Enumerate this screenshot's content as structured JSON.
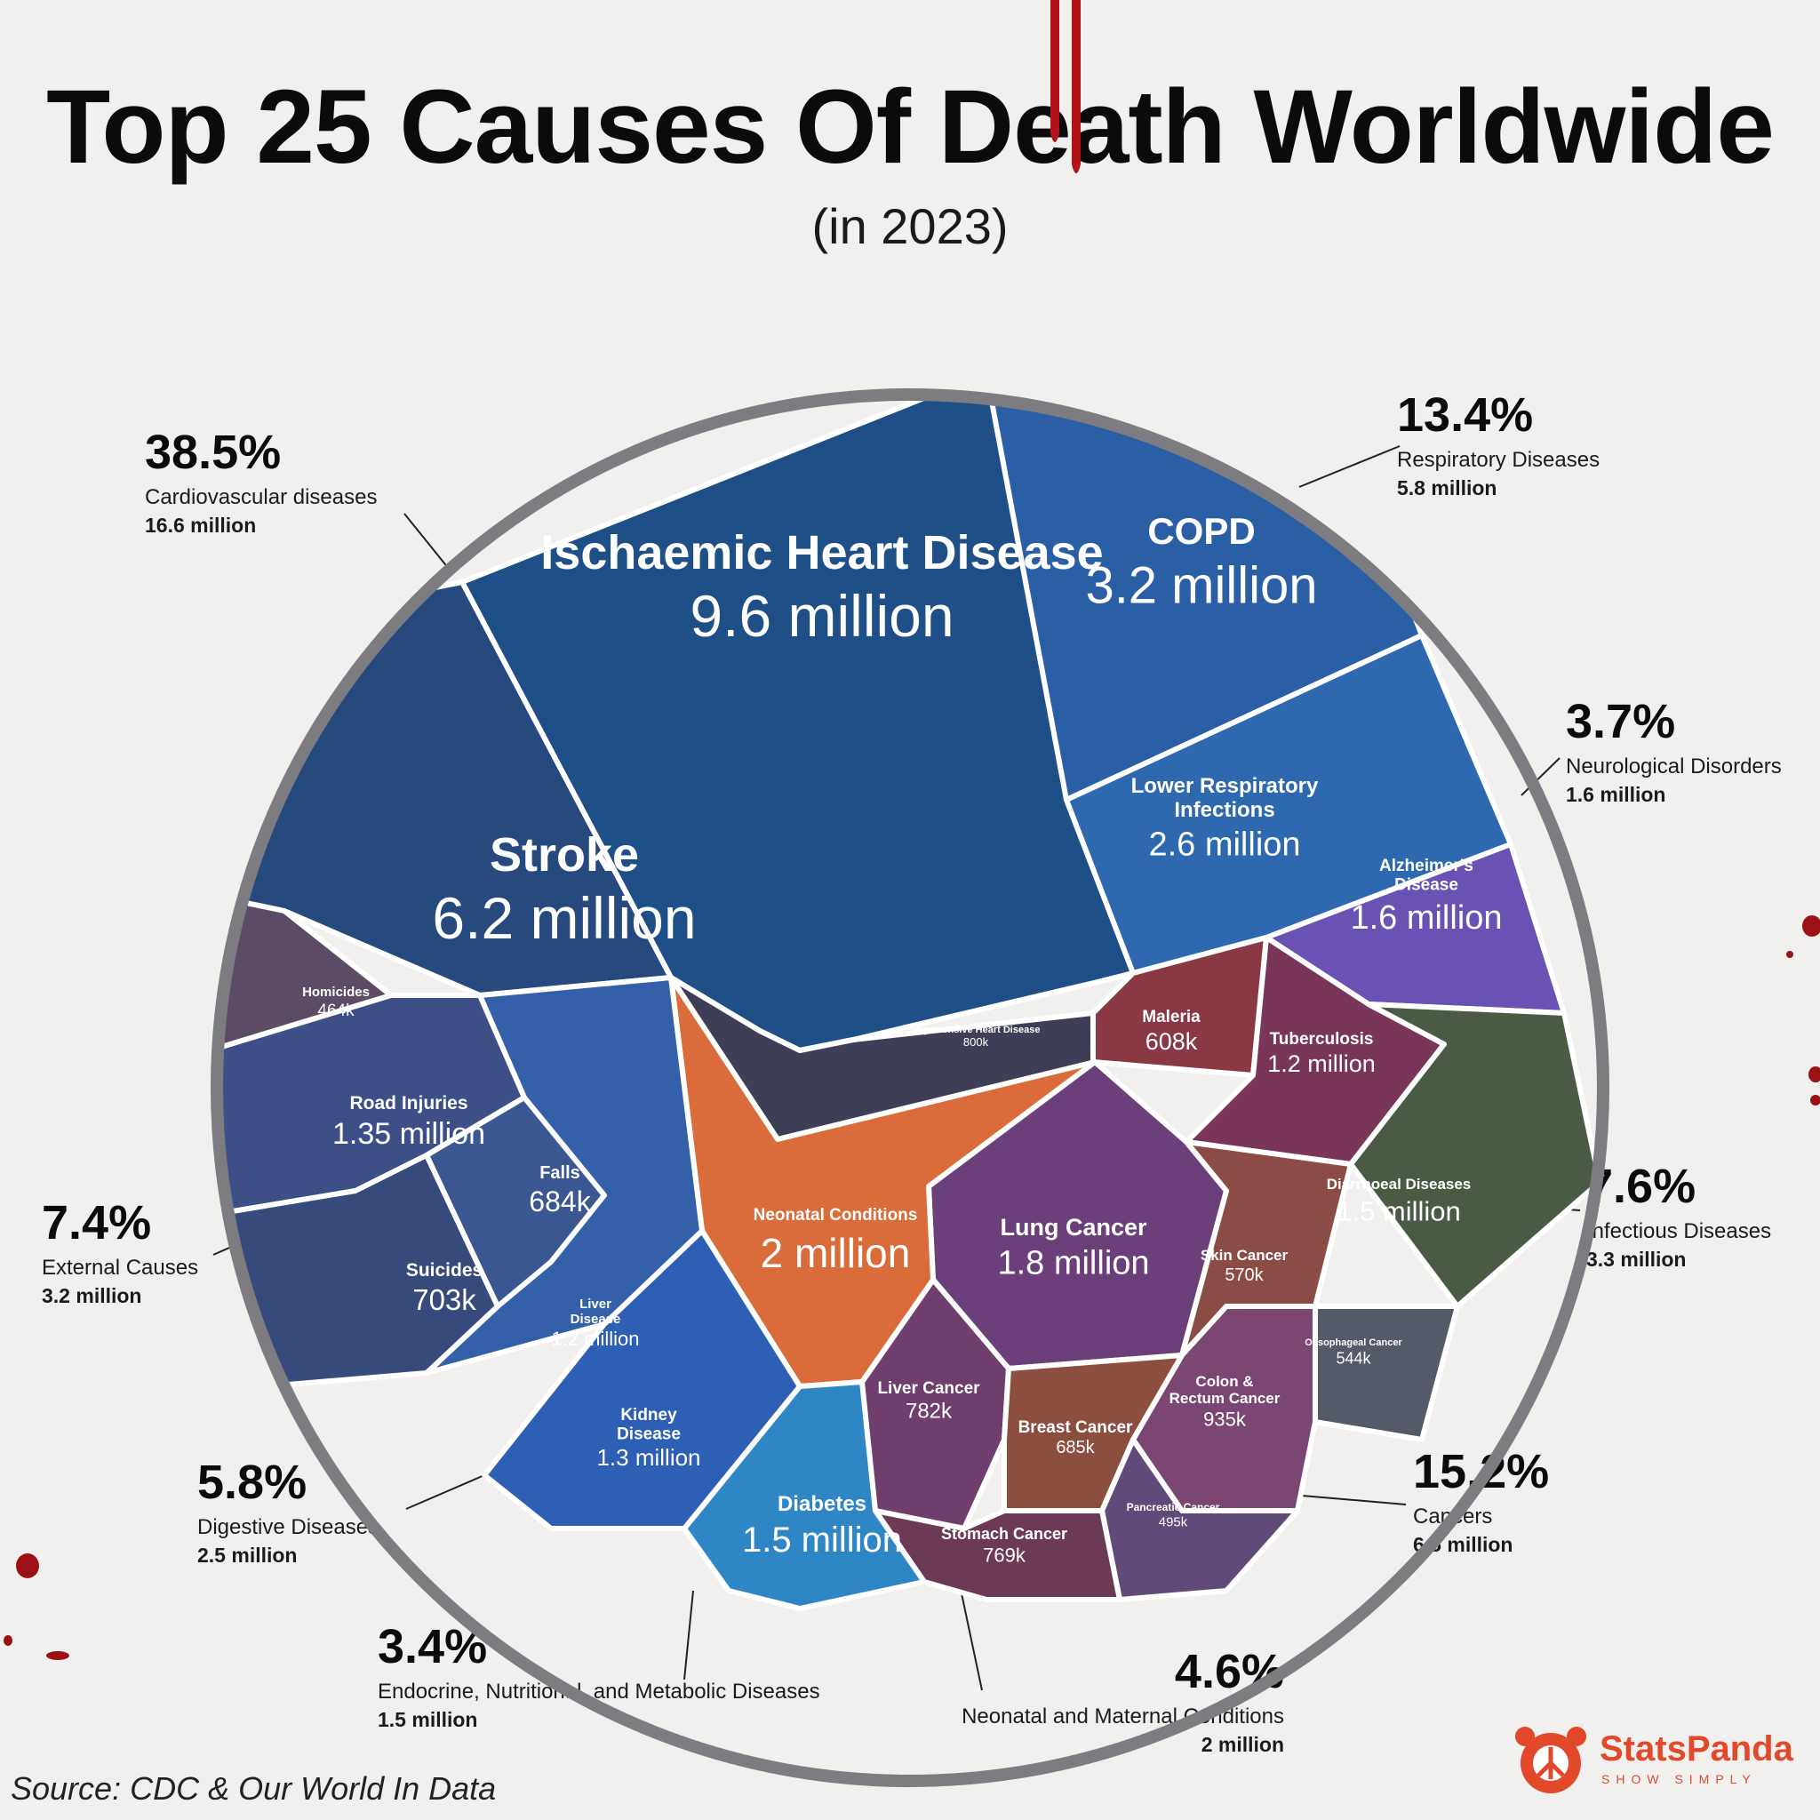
{
  "title": "Top 25 Causes Of Death Worldwide",
  "subtitle": "(in 2023)",
  "source": "Source: CDC & Our World In Data",
  "brand": {
    "name": "StatsPanda",
    "tagline": "SHOW SIMPLY"
  },
  "colors": {
    "ring": "#7d7c80",
    "cardio": "#1e4f86",
    "respiratory": "#2a5fa5",
    "neuro": "#6a52b4",
    "infectious": "#7a3a58",
    "cancer": "#6a4a8a",
    "neonatal": "#d96c3a",
    "endocrine": "#2f86c4",
    "digestive": "#2f63b7",
    "external": "#3d4f86",
    "blood": "#9b1115",
    "brand": "#e2482a"
  },
  "groups": [
    {
      "id": "cardio",
      "pct": "38.5%",
      "name": "Cardiovascular diseases",
      "value": "16.6 million"
    },
    {
      "id": "resp",
      "pct": "13.4%",
      "name": "Respiratory Diseases",
      "value": "5.8 million"
    },
    {
      "id": "neuro",
      "pct": "3.7%",
      "name": "Neurological Disorders",
      "value": "1.6 million"
    },
    {
      "id": "infect",
      "pct": "7.6%",
      "name": "Infectious Diseases",
      "value": "3.3 million"
    },
    {
      "id": "cancer",
      "pct": "15.2%",
      "name": "Cancers",
      "value": "6.5 million"
    },
    {
      "id": "neonatal",
      "pct": "4.6%",
      "name": "Neonatal and Maternal Conditions",
      "value": "2 million"
    },
    {
      "id": "endo",
      "pct": "3.4%",
      "name": "Endocrine, Nutritional, and Metabolic Diseases",
      "value": "1.5 million"
    },
    {
      "id": "digest",
      "pct": "5.8%",
      "name": "Digestive Diseases",
      "value": "2.5 million"
    },
    {
      "id": "external",
      "pct": "7.4%",
      "name": "External Causes",
      "value": "3.2 million"
    }
  ],
  "chart_data": {
    "type": "voronoi-treemap",
    "title": "Top 25 Causes Of Death Worldwide",
    "subtitle": "(in 2023)",
    "cells": [
      {
        "label": "Ischaemic Heart Disease",
        "value_text": "9.6 million",
        "value": 9600000,
        "group": "Cardiovascular diseases"
      },
      {
        "label": "Stroke",
        "value_text": "6.2 million",
        "value": 6200000,
        "group": "Cardiovascular diseases"
      },
      {
        "label": "Hypertensive Heart Disease",
        "value_text": "800k",
        "value": 800000,
        "group": "Cardiovascular diseases"
      },
      {
        "label": "COPD",
        "value_text": "3.2 million",
        "value": 3200000,
        "group": "Respiratory Diseases"
      },
      {
        "label": "Lower Respiratory Infections",
        "value_text": "2.6 million",
        "value": 2600000,
        "group": "Respiratory Diseases"
      },
      {
        "label": "Alzheimer's Disease",
        "value_text": "1.6 million",
        "value": 1600000,
        "group": "Neurological Disorders"
      },
      {
        "label": "Maleria",
        "value_text": "608k",
        "value": 608000,
        "group": "Infectious Diseases"
      },
      {
        "label": "Tuberculosis",
        "value_text": "1.2 million",
        "value": 1200000,
        "group": "Infectious Diseases"
      },
      {
        "label": "Diarrhoeal Diseases",
        "value_text": "1.5 million",
        "value": 1500000,
        "group": "Infectious Diseases"
      },
      {
        "label": "Lung Cancer",
        "value_text": "1.8 million",
        "value": 1800000,
        "group": "Cancers"
      },
      {
        "label": "Skin Cancer",
        "value_text": "570k",
        "value": 570000,
        "group": "Cancers"
      },
      {
        "label": "Oesophageal Cancer",
        "value_text": "544k",
        "value": 544000,
        "group": "Cancers"
      },
      {
        "label": "Colon & Rectum Cancer",
        "value_text": "935k",
        "value": 935000,
        "group": "Cancers"
      },
      {
        "label": "Liver Cancer",
        "value_text": "782k",
        "value": 782000,
        "group": "Cancers"
      },
      {
        "label": "Breast Cancer",
        "value_text": "685k",
        "value": 685000,
        "group": "Cancers"
      },
      {
        "label": "Pancreatic Cancer",
        "value_text": "495k",
        "value": 495000,
        "group": "Cancers"
      },
      {
        "label": "Stomach Cancer",
        "value_text": "769k",
        "value": 769000,
        "group": "Cancers"
      },
      {
        "label": "Neonatal Conditions",
        "value_text": "2 million",
        "value": 2000000,
        "group": "Neonatal and Maternal Conditions"
      },
      {
        "label": "Diabetes",
        "value_text": "1.5 million",
        "value": 1500000,
        "group": "Endocrine, Nutritional, and Metabolic Diseases"
      },
      {
        "label": "Kidney Disease",
        "value_text": "1.3 million",
        "value": 1300000,
        "group": "Digestive Diseases"
      },
      {
        "label": "Liver Disease",
        "value_text": "1.2 million",
        "value": 1200000,
        "group": "Digestive Diseases"
      },
      {
        "label": "Homicides",
        "value_text": "464k",
        "value": 464000,
        "group": "External Causes"
      },
      {
        "label": "Road Injuries",
        "value_text": "1.35 million",
        "value": 1350000,
        "group": "External Causes"
      },
      {
        "label": "Falls",
        "value_text": "684k",
        "value": 684000,
        "group": "External Causes"
      },
      {
        "label": "Suicides",
        "value_text": "703k",
        "value": 703000,
        "group": "External Causes"
      }
    ]
  }
}
